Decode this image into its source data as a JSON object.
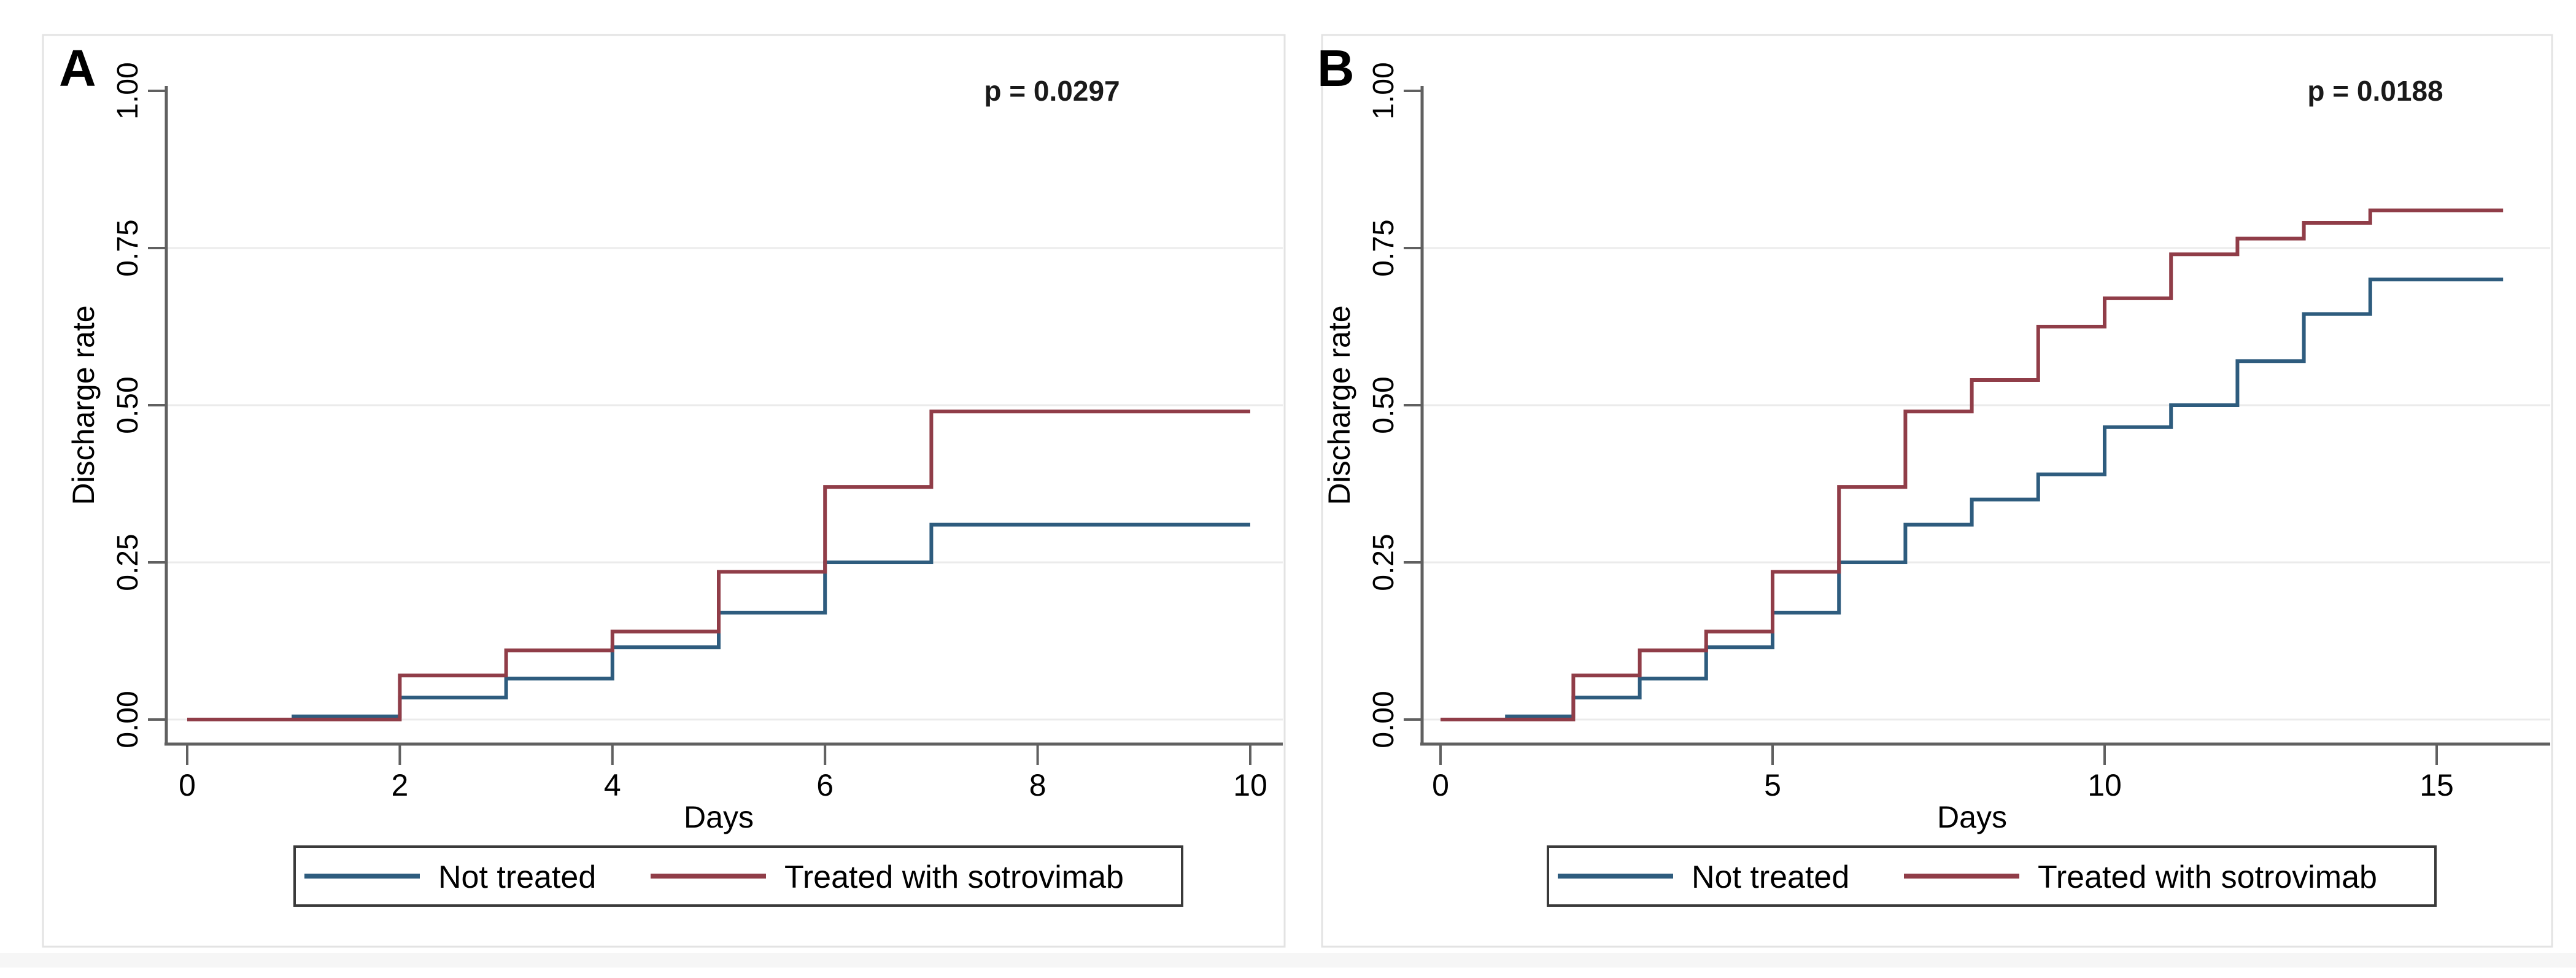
{
  "figure": {
    "panels": [
      {
        "label": "A",
        "p_value": "p = 0.0297",
        "ylabel": "Discharge rate",
        "xlabel": "Days",
        "x_tick_labels": [
          "0",
          "2",
          "4",
          "6",
          "8",
          "10"
        ],
        "y_tick_labels": [
          "0.00",
          "0.25",
          "0.50",
          "0.75",
          "1.00"
        ]
      },
      {
        "label": "B",
        "p_value": "p = 0.0188",
        "ylabel": "Discharge rate",
        "xlabel": "Days",
        "x_tick_labels": [
          "0",
          "5",
          "10",
          "15"
        ],
        "y_tick_labels": [
          "0.00",
          "0.25",
          "0.50",
          "0.75",
          "1.00"
        ]
      }
    ],
    "legend": {
      "items": [
        {
          "label": "Not treated",
          "color": "#2e5c7e"
        },
        {
          "label": "Treated with sotrovimab",
          "color": "#903d48"
        }
      ]
    },
    "colors": {
      "axis": "#606060",
      "grid": "#ebebeb",
      "panel_border": "#e3e3e3",
      "legend_border": "#3a3a3a",
      "not_treated": "#2e5c7e",
      "treated": "#903d48"
    }
  },
  "chart_data": [
    {
      "type": "line",
      "subtype": "kaplan-meier-step",
      "panel": "A",
      "title": "",
      "xlabel": "Days",
      "ylabel": "Discharge rate",
      "xlim": [
        0,
        10.3
      ],
      "ylim": [
        0,
        1.0
      ],
      "x_ticks": [
        0,
        2,
        4,
        6,
        8,
        10
      ],
      "y_ticks": [
        0,
        0.25,
        0.5,
        0.75,
        1.0
      ],
      "grid": "horizontal",
      "annotation": "p = 0.0297",
      "legend_position": "bottom",
      "end_day": 10,
      "series": [
        {
          "name": "Not treated",
          "color": "#2e5c7e",
          "steps": [
            [
              0,
              0
            ],
            [
              1,
              0.005
            ],
            [
              2,
              0.035
            ],
            [
              3,
              0.065
            ],
            [
              4,
              0.115
            ],
            [
              5,
              0.17
            ],
            [
              6,
              0.25
            ],
            [
              7,
              0.31
            ]
          ]
        },
        {
          "name": "Treated with sotrovimab",
          "color": "#903d48",
          "steps": [
            [
              0,
              0
            ],
            [
              2,
              0.07
            ],
            [
              3,
              0.11
            ],
            [
              4,
              0.14
            ],
            [
              5,
              0.235
            ],
            [
              6,
              0.37
            ],
            [
              7,
              0.49
            ]
          ]
        }
      ]
    },
    {
      "type": "line",
      "subtype": "kaplan-meier-step",
      "panel": "B",
      "title": "",
      "xlabel": "Days",
      "ylabel": "Discharge rate",
      "xlim": [
        0,
        16.35
      ],
      "ylim": [
        0,
        1.0
      ],
      "x_ticks": [
        0,
        5,
        10,
        15
      ],
      "y_ticks": [
        0,
        0.25,
        0.5,
        0.75,
        1.0
      ],
      "grid": "horizontal",
      "annotation": "p = 0.0188",
      "legend_position": "bottom",
      "end_day": 16,
      "series": [
        {
          "name": "Not treated",
          "color": "#2e5c7e",
          "steps": [
            [
              0,
              0
            ],
            [
              1,
              0.005
            ],
            [
              2,
              0.035
            ],
            [
              3,
              0.065
            ],
            [
              4,
              0.115
            ],
            [
              5,
              0.17
            ],
            [
              6,
              0.25
            ],
            [
              7,
              0.31
            ],
            [
              8,
              0.35
            ],
            [
              9,
              0.39
            ],
            [
              10,
              0.465
            ],
            [
              11,
              0.5
            ],
            [
              12,
              0.57
            ],
            [
              13,
              0.645
            ],
            [
              14,
              0.7
            ]
          ]
        },
        {
          "name": "Treated with sotrovimab",
          "color": "#903d48",
          "steps": [
            [
              0,
              0
            ],
            [
              2,
              0.07
            ],
            [
              3,
              0.11
            ],
            [
              4,
              0.14
            ],
            [
              5,
              0.235
            ],
            [
              6,
              0.37
            ],
            [
              7,
              0.49
            ],
            [
              8,
              0.54
            ],
            [
              9,
              0.625
            ],
            [
              10,
              0.67
            ],
            [
              11,
              0.74
            ],
            [
              12,
              0.765
            ],
            [
              13,
              0.79
            ],
            [
              14,
              0.81
            ]
          ]
        }
      ]
    }
  ]
}
